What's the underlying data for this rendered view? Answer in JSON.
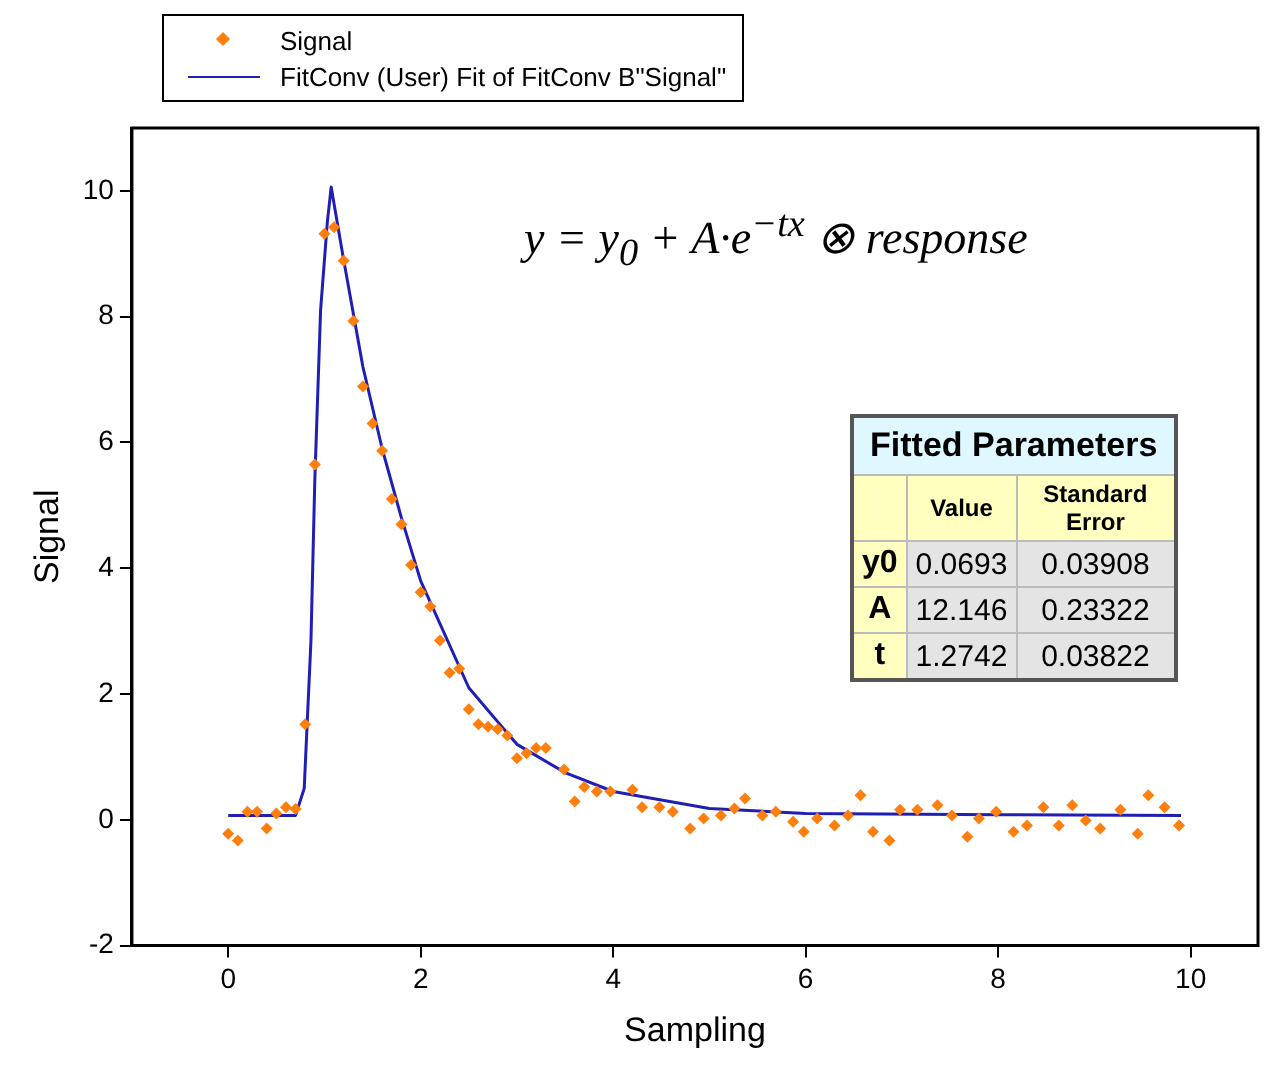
{
  "chart_data": {
    "type": "scatter",
    "xlabel": "Sampling",
    "ylabel": "Signal",
    "xlim": [
      -1,
      10.7
    ],
    "ylim": [
      -2,
      11
    ],
    "xticks": [
      0,
      2,
      4,
      6,
      8,
      10
    ],
    "yticks": [
      -2,
      0,
      2,
      4,
      6,
      8,
      10
    ],
    "grid": false,
    "legend": "top left",
    "annotations": [
      "y = y$_{0}$ + A·e$^{−tx}$ ⊗ response",
      "Fitted Parameters",
      "Value",
      "Standard Error",
      "y0",
      "0.0693",
      "0.03908",
      "A",
      "12.146",
      "0.23322",
      "t",
      "1.2742",
      "0.03822"
    ],
    "series": [
      {
        "name": "Signal",
        "color": "#ff7f0e",
        "marker": "diamond",
        "x": [
          0,
          0.1,
          0.2,
          0.3,
          0.4,
          0.5,
          0.6,
          0.7,
          0.8,
          0.9,
          1.0,
          1.1,
          1.2,
          1.3,
          1.4,
          1.5,
          1.6,
          1.7,
          1.8,
          1.9,
          2.0,
          2.1,
          2.2,
          2.3,
          2.4,
          2.5,
          2.6,
          2.7,
          2.8,
          2.9,
          3.0,
          3.1,
          3.2,
          3.3,
          3.49,
          3.6,
          3.7,
          3.83,
          3.97,
          4.2,
          4.3,
          4.48,
          4.62,
          4.8,
          4.94,
          5.12,
          5.26,
          5.37,
          5.55,
          5.69,
          5.87,
          5.98,
          6.12,
          6.3,
          6.44,
          6.57,
          6.7,
          6.87,
          6.98,
          7.16,
          7.37,
          7.52,
          7.68,
          7.8,
          7.98,
          8.16,
          8.3,
          8.47,
          8.63,
          8.77,
          8.91,
          9.06,
          9.27,
          9.45,
          9.56,
          9.73,
          9.88
        ],
        "values": [
          -0.22,
          -0.33,
          0.13,
          0.13,
          -0.14,
          0.1,
          0.2,
          0.17,
          1.52,
          5.65,
          9.32,
          9.42,
          8.89,
          7.93,
          6.89,
          6.3,
          5.87,
          5.1,
          4.7,
          4.05,
          3.62,
          3.39,
          2.85,
          2.34,
          2.4,
          1.76,
          1.52,
          1.48,
          1.44,
          1.34,
          0.98,
          1.06,
          1.14,
          1.14,
          0.8,
          0.29,
          0.52,
          0.45,
          0.45,
          0.48,
          0.2,
          0.2,
          0.13,
          -0.14,
          0.02,
          0.07,
          0.18,
          0.34,
          0.07,
          0.13,
          -0.03,
          -0.19,
          0.02,
          -0.09,
          0.07,
          0.39,
          -0.19,
          -0.33,
          0.16,
          0.16,
          0.23,
          0.07,
          -0.27,
          0.02,
          0.13,
          -0.19,
          -0.09,
          0.2,
          -0.09,
          0.23,
          -0.01,
          -0.14,
          0.16,
          -0.22,
          0.39,
          0.2,
          -0.09
        ]
      },
      {
        "name": "FitConv (User) Fit of FitConv B\"Signal\"",
        "type": "line",
        "color": "#1f1fb4",
        "marker": "none",
        "line_style": "solid",
        "x": [
          0,
          0.7,
          0.79,
          0.86,
          0.9,
          0.96,
          1.03,
          1.07,
          1.2,
          1.4,
          1.6,
          1.8,
          2.0,
          2.5,
          3.0,
          3.5,
          4.0,
          5.0,
          6.0,
          8.0,
          9.9
        ],
        "values": [
          0.07,
          0.07,
          0.5,
          2.85,
          5.4,
          8.1,
          9.5,
          10.06,
          8.9,
          7.2,
          5.9,
          4.8,
          3.8,
          2.1,
          1.2,
          0.75,
          0.45,
          0.18,
          0.1,
          0.08,
          0.07
        ]
      }
    ]
  }
}
